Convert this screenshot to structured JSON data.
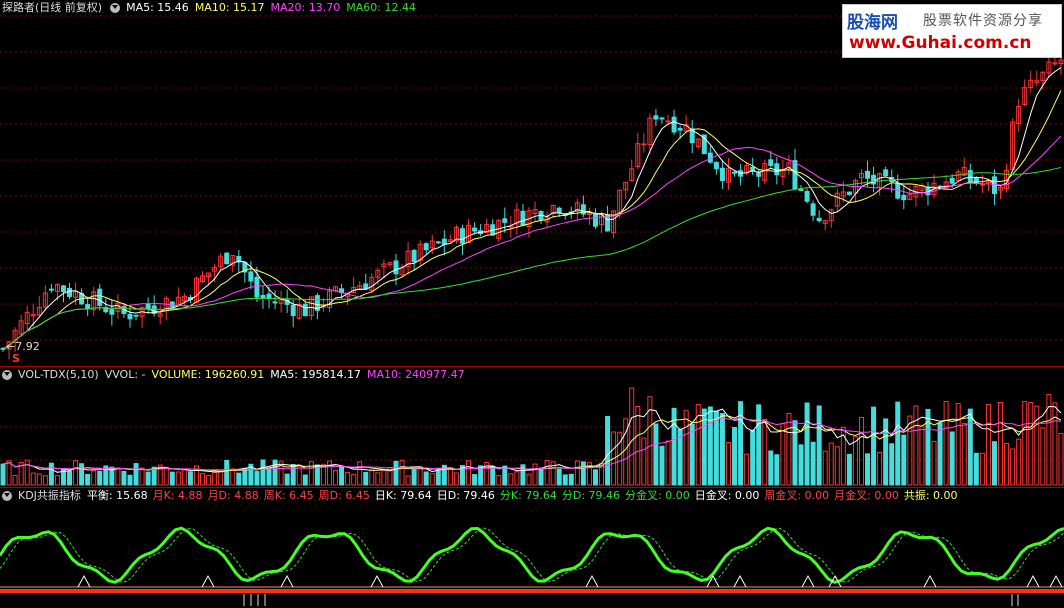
{
  "main": {
    "title": "探路者(日线 前复权)",
    "ma": [
      {
        "label": "MA5: 15.46",
        "color": "#ffffff"
      },
      {
        "label": "MA10: 15.17",
        "color": "#ffff66"
      },
      {
        "label": "MA20: 13.70",
        "color": "#ff44ff"
      },
      {
        "label": "MA60: 12.44",
        "color": "#33dd33"
      }
    ],
    "low_label": "7.92",
    "marker_label": "S"
  },
  "volume": {
    "title": "VOL-TDX(5,10)",
    "vvol": "VVOL: -",
    "items": [
      {
        "label": "VOLUME: 196260.91",
        "color": "#ffffff"
      },
      {
        "label": "MA5: 195814.17",
        "color": "#ffff66"
      },
      {
        "label": "MA10: 240977.47",
        "color": "#ff44ff"
      }
    ]
  },
  "kdj": {
    "title": "KDJ共振指标",
    "items": [
      {
        "label": "平衡: 15.68",
        "color": "#ffffff"
      },
      {
        "label": "月K: 4.88",
        "color": "#ff4444"
      },
      {
        "label": "月D: 4.88",
        "color": "#ff4444"
      },
      {
        "label": "周K: 6.45",
        "color": "#ff4444"
      },
      {
        "label": "周D: 6.45",
        "color": "#ff4444"
      },
      {
        "label": "日K: 79.64",
        "color": "#ffffff"
      },
      {
        "label": "日D: 79.46",
        "color": "#ffffff"
      },
      {
        "label": "分K: 79.64",
        "color": "#33dd33"
      },
      {
        "label": "分D: 79.46",
        "color": "#33dd33"
      },
      {
        "label": "分金叉: 0.00",
        "color": "#33dd33"
      },
      {
        "label": "日金叉: 0.00",
        "color": "#ffffff"
      },
      {
        "label": "周金叉: 0.00",
        "color": "#ff4444"
      },
      {
        "label": "月金叉: 0.00",
        "color": "#ff4444"
      },
      {
        "label": "共振: 0.00",
        "color": "#ffff66"
      }
    ]
  },
  "watermark": {
    "brand": "股海网",
    "slogan": "股票软件资源分享",
    "url": "www.Guhai.com.cn"
  },
  "colors": {
    "up": "#ff3333",
    "down": "#44dddd",
    "grid": "#8a0000",
    "green": "#33dd33"
  }
}
